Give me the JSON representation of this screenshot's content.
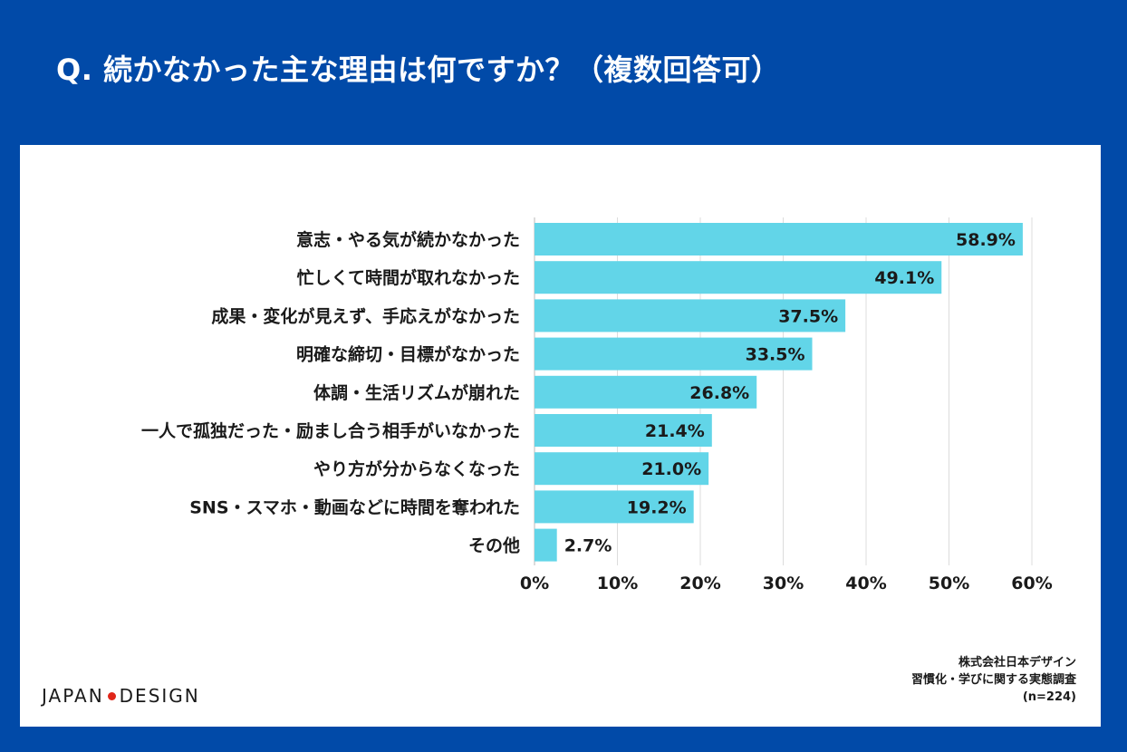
{
  "title": "Q. 続かなかった主な理由は何ですか？（複数回答可）",
  "logo": {
    "left": "JAPAN",
    "right": "DESIGN"
  },
  "source": {
    "company": "株式会社日本デザイン",
    "survey": "習慣化・学びに関する実態調査",
    "sample": "(n=224)"
  },
  "colors": {
    "background": "#014aa8",
    "bar": "#62d5e8",
    "accent_dot": "#e0261a"
  },
  "chart_data": {
    "type": "bar",
    "orientation": "horizontal",
    "categories": [
      "意志・やる気が続かなかった",
      "忙しくて時間が取れなかった",
      "成果・変化が見えず、手応えがなかった",
      "明確な締切・目標がなかった",
      "体調・生活リズムが崩れた",
      "一人で孤独だった・励まし合う相手がいなかった",
      "やり方が分からなくなった",
      "SNS・スマホ・動画などに時間を奪われた",
      "その他"
    ],
    "values": [
      58.9,
      49.1,
      37.5,
      33.5,
      26.8,
      21.4,
      21.0,
      19.2,
      2.7
    ],
    "value_labels": [
      "58.9%",
      "49.1%",
      "37.5%",
      "33.5%",
      "26.8%",
      "21.4%",
      "21.0%",
      "19.2%",
      "2.7%"
    ],
    "xlim": [
      0,
      60
    ],
    "ticks": [
      "0%",
      "10%",
      "20%",
      "30%",
      "40%",
      "50%",
      "60%"
    ],
    "grid": true
  }
}
